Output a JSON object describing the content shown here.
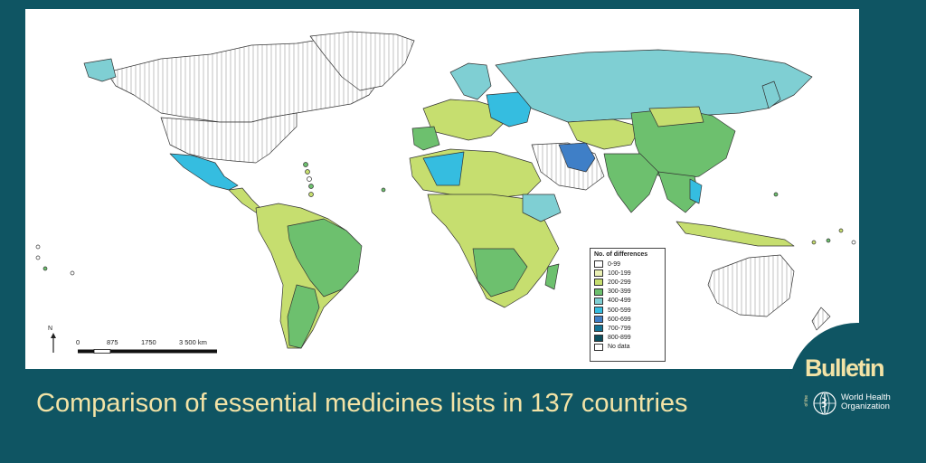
{
  "caption": "Comparison of essential medicines lists in 137 countries",
  "legend": {
    "title": "No. of differences",
    "items": [
      {
        "label": "0-99",
        "color": "#ffffff"
      },
      {
        "label": "100-199",
        "color": "#eaf0b4"
      },
      {
        "label": "200-299",
        "color": "#c6de6f"
      },
      {
        "label": "300-399",
        "color": "#6dc06e"
      },
      {
        "label": "400-499",
        "color": "#7fcfd3"
      },
      {
        "label": "500-599",
        "color": "#35bde0"
      },
      {
        "label": "600-699",
        "color": "#3f7fc7"
      },
      {
        "label": "700-799",
        "color": "#147394"
      },
      {
        "label": "800-899",
        "color": "#0d4f5e"
      },
      {
        "label": "No data",
        "color": "#ffffff"
      }
    ]
  },
  "scale": {
    "ticks": [
      "0",
      "875",
      "1750",
      "3 500 km"
    ]
  },
  "north_label": "N",
  "branding": {
    "bulletin": "Bulletin",
    "of_the": "of the",
    "org_line1": "World Health",
    "org_line2": "Organization"
  },
  "colors": {
    "background": "#0f5563",
    "caption_text": "#f3e3a6"
  }
}
